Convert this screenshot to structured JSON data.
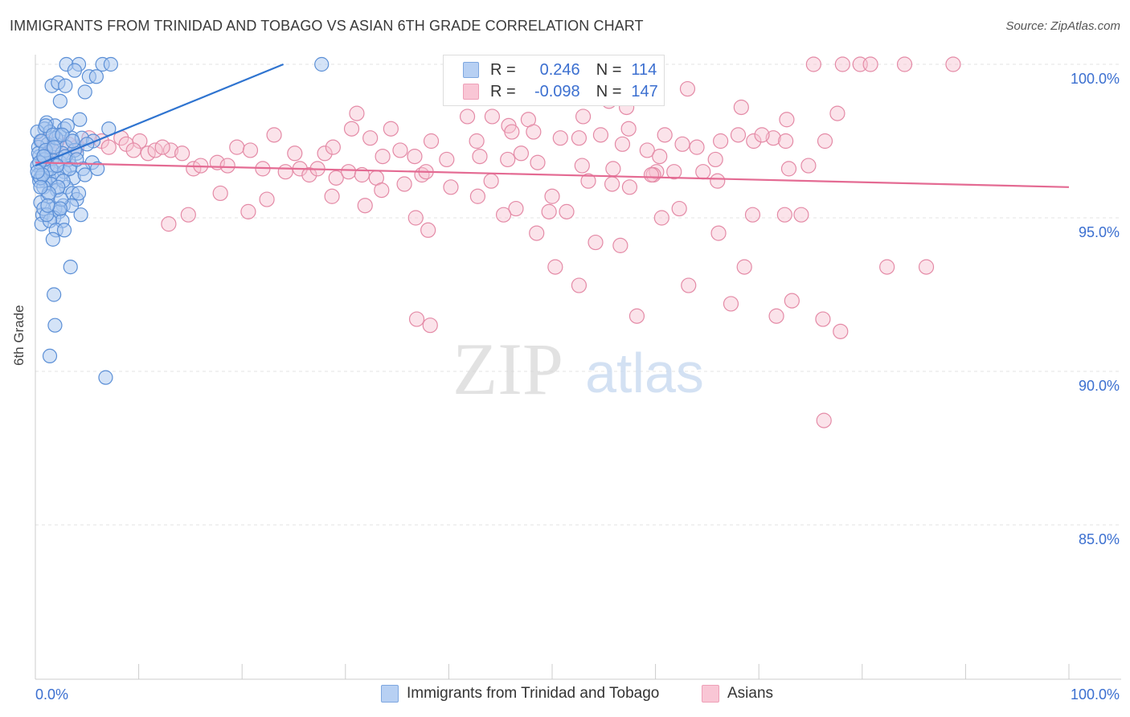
{
  "title": "IMMIGRANTS FROM TRINIDAD AND TOBAGO VS ASIAN 6TH GRADE CORRELATION CHART",
  "source": "Source: ZipAtlas.com",
  "watermark": {
    "zip": "ZIP",
    "atlas": "atlas"
  },
  "legend_top": {
    "rows": [
      {
        "r_label": "R =",
        "r_value": "0.246",
        "n_label": "N =",
        "n_value": "114"
      },
      {
        "r_label": "R =",
        "r_value": "-0.098",
        "n_label": "N =",
        "n_value": "147"
      }
    ]
  },
  "legend_bottom": {
    "items": [
      {
        "label": "Immigrants from Trinidad and Tobago"
      },
      {
        "label": "Asians"
      }
    ]
  },
  "colors": {
    "blue_fill": "#a9c8ef",
    "blue_stroke": "#5b8fd6",
    "blue_line": "#2f74d0",
    "pink_fill": "#f7c0d0",
    "pink_stroke": "#e48aa6",
    "pink_line": "#e46b93",
    "axis_label": "#3b6fd0",
    "grid": "#e3e3e3"
  },
  "chart_data": {
    "type": "scatter",
    "title": "IMMIGRANTS FROM TRINIDAD AND TOBAGO VS ASIAN 6TH GRADE CORRELATION CHART",
    "xlabel": "",
    "ylabel": "6th Grade",
    "xlim": [
      0,
      100
    ],
    "ylim": [
      80.5,
      101
    ],
    "x_tick_labels": [
      "0.0%",
      "100.0%"
    ],
    "y_ticks": [
      100,
      95,
      90,
      85
    ],
    "y_tick_labels": [
      "100.0%",
      "95.0%",
      "90.0%",
      "85.0%"
    ],
    "grid": true,
    "legend_position": "top-center",
    "series": [
      {
        "name": "Immigrants from Trinidad and Tobago",
        "r": 0.246,
        "n": 114,
        "trend": {
          "x": [
            0,
            24
          ],
          "y": [
            96.7,
            100
          ]
        },
        "points": [
          [
            3.0,
            100
          ],
          [
            4.2,
            100
          ],
          [
            6.5,
            100
          ],
          [
            27.7,
            100
          ],
          [
            3.8,
            99.8
          ],
          [
            5.2,
            99.6
          ],
          [
            1.6,
            99.3
          ],
          [
            2.2,
            99.4
          ],
          [
            2.9,
            99.3
          ],
          [
            4.8,
            99.1
          ],
          [
            2.4,
            98.8
          ],
          [
            4.3,
            98.2
          ],
          [
            1.1,
            98.1
          ],
          [
            0.9,
            97.9
          ],
          [
            1.9,
            98.0
          ],
          [
            2.8,
            97.9
          ],
          [
            7.1,
            97.9
          ],
          [
            1.4,
            97.8
          ],
          [
            2.3,
            97.7
          ],
          [
            3.5,
            97.6
          ],
          [
            4.5,
            97.6
          ],
          [
            5.6,
            97.5
          ],
          [
            0.5,
            97.5
          ],
          [
            1.2,
            97.4
          ],
          [
            2.0,
            97.4
          ],
          [
            3.0,
            97.3
          ],
          [
            0.3,
            97.3
          ],
          [
            1.7,
            97.2
          ],
          [
            2.6,
            97.1
          ],
          [
            4.0,
            97.1
          ],
          [
            0.4,
            97.0
          ],
          [
            1.0,
            97.0
          ],
          [
            1.6,
            96.9
          ],
          [
            0.7,
            96.9
          ],
          [
            2.4,
            96.8
          ],
          [
            5.5,
            96.8
          ],
          [
            0.2,
            96.7
          ],
          [
            1.2,
            96.7
          ],
          [
            3.4,
            96.7
          ],
          [
            4.6,
            96.6
          ],
          [
            0.6,
            96.6
          ],
          [
            1.8,
            96.5
          ],
          [
            2.8,
            96.5
          ],
          [
            0.3,
            96.4
          ],
          [
            1.3,
            96.3
          ],
          [
            3.7,
            96.3
          ],
          [
            2.2,
            96.3
          ],
          [
            0.9,
            96.2
          ],
          [
            0.4,
            96.2
          ],
          [
            1.5,
            96.1
          ],
          [
            3.0,
            96.0
          ],
          [
            0.8,
            96.0
          ],
          [
            2.1,
            95.9
          ],
          [
            3.6,
            95.8
          ],
          [
            1.2,
            95.7
          ],
          [
            4.0,
            95.6
          ],
          [
            0.5,
            95.5
          ],
          [
            2.7,
            95.4
          ],
          [
            3.5,
            95.4
          ],
          [
            1.9,
            95.3
          ],
          [
            2.3,
            95.2
          ],
          [
            4.4,
            95.1
          ],
          [
            0.7,
            95.1
          ],
          [
            1.8,
            95.0
          ],
          [
            2.6,
            94.9
          ],
          [
            0.6,
            94.8
          ],
          [
            1.4,
            94.9
          ],
          [
            2.0,
            94.6
          ],
          [
            2.8,
            94.6
          ],
          [
            1.7,
            94.3
          ],
          [
            3.4,
            93.4
          ],
          [
            1.8,
            92.5
          ],
          [
            1.9,
            91.5
          ],
          [
            1.4,
            90.5
          ],
          [
            6.8,
            89.8
          ],
          [
            0.2,
            97.8
          ],
          [
            0.5,
            96.3
          ],
          [
            0.8,
            95.3
          ],
          [
            2.5,
            95.6
          ],
          [
            1.1,
            95.1
          ],
          [
            3.2,
            96.9
          ],
          [
            4.8,
            96.4
          ],
          [
            0.3,
            97.1
          ],
          [
            1.0,
            98.0
          ],
          [
            2.0,
            97.6
          ],
          [
            2.7,
            96.2
          ],
          [
            3.8,
            97.2
          ],
          [
            0.6,
            97.5
          ],
          [
            1.5,
            96.6
          ],
          [
            2.2,
            96.0
          ],
          [
            0.9,
            96.9
          ],
          [
            1.7,
            97.7
          ],
          [
            3.1,
            98.0
          ],
          [
            5.0,
            97.4
          ],
          [
            0.4,
            96.8
          ],
          [
            1.3,
            95.8
          ],
          [
            2.9,
            97.0
          ],
          [
            4.2,
            95.8
          ],
          [
            0.7,
            96.4
          ],
          [
            2.4,
            95.3
          ],
          [
            1.0,
            97.2
          ],
          [
            3.3,
            96.6
          ],
          [
            0.5,
            96.0
          ],
          [
            1.8,
            97.3
          ],
          [
            2.6,
            97.7
          ],
          [
            4.0,
            96.9
          ],
          [
            0.2,
            96.5
          ],
          [
            1.2,
            95.4
          ],
          [
            3.6,
            97.5
          ],
          [
            0.8,
            97.0
          ],
          [
            2.1,
            96.7
          ],
          [
            5.9,
            99.6
          ],
          [
            7.3,
            100
          ],
          [
            6.0,
            96.6
          ]
        ]
      },
      {
        "name": "Asians",
        "r": -0.098,
        "n": 147,
        "trend": {
          "x": [
            0,
            100
          ],
          "y": [
            96.8,
            96.0
          ]
        },
        "points": [
          [
            75.3,
            100
          ],
          [
            78.1,
            100
          ],
          [
            79.8,
            100
          ],
          [
            80.8,
            100
          ],
          [
            84.1,
            100
          ],
          [
            88.8,
            100
          ],
          [
            63.1,
            99.2
          ],
          [
            55.5,
            98.8
          ],
          [
            41.3,
            98.9
          ],
          [
            57.2,
            98.6
          ],
          [
            31.1,
            98.4
          ],
          [
            41.8,
            98.3
          ],
          [
            44.2,
            98.3
          ],
          [
            47.7,
            98.2
          ],
          [
            53.0,
            98.3
          ],
          [
            68.3,
            98.6
          ],
          [
            72.7,
            98.2
          ],
          [
            77.6,
            98.4
          ],
          [
            30.6,
            97.9
          ],
          [
            34.4,
            97.9
          ],
          [
            45.8,
            98.0
          ],
          [
            48.2,
            97.8
          ],
          [
            54.7,
            97.7
          ],
          [
            57.4,
            97.9
          ],
          [
            62.6,
            97.4
          ],
          [
            66.3,
            97.5
          ],
          [
            68.0,
            97.7
          ],
          [
            71.4,
            97.6
          ],
          [
            76.4,
            97.5
          ],
          [
            23.1,
            97.7
          ],
          [
            32.4,
            97.6
          ],
          [
            38.3,
            97.5
          ],
          [
            42.7,
            97.5
          ],
          [
            46.1,
            97.8
          ],
          [
            50.8,
            97.6
          ],
          [
            52.6,
            97.6
          ],
          [
            56.8,
            97.4
          ],
          [
            59.2,
            97.2
          ],
          [
            60.9,
            97.7
          ],
          [
            19.5,
            97.3
          ],
          [
            20.8,
            97.2
          ],
          [
            25.1,
            97.1
          ],
          [
            28.0,
            97.1
          ],
          [
            33.6,
            97.0
          ],
          [
            36.7,
            97.0
          ],
          [
            39.8,
            96.9
          ],
          [
            43.0,
            97.0
          ],
          [
            47.0,
            97.1
          ],
          [
            52.9,
            96.7
          ],
          [
            60.1,
            96.5
          ],
          [
            65.8,
            96.9
          ],
          [
            72.9,
            96.6
          ],
          [
            13.1,
            97.2
          ],
          [
            14.2,
            97.1
          ],
          [
            15.3,
            96.6
          ],
          [
            16.0,
            96.7
          ],
          [
            17.6,
            96.8
          ],
          [
            18.6,
            96.7
          ],
          [
            22.0,
            96.6
          ],
          [
            24.2,
            96.5
          ],
          [
            25.6,
            96.6
          ],
          [
            26.5,
            96.4
          ],
          [
            27.3,
            96.6
          ],
          [
            29.1,
            96.3
          ],
          [
            30.3,
            96.5
          ],
          [
            31.6,
            96.4
          ],
          [
            33.0,
            96.3
          ],
          [
            35.7,
            96.1
          ],
          [
            37.4,
            96.4
          ],
          [
            40.2,
            96.0
          ],
          [
            42.8,
            95.7
          ],
          [
            46.5,
            95.3
          ],
          [
            50.0,
            95.7
          ],
          [
            53.5,
            96.2
          ],
          [
            55.8,
            96.1
          ],
          [
            57.5,
            96.0
          ],
          [
            59.8,
            96.4
          ],
          [
            61.8,
            96.5
          ],
          [
            64.6,
            96.5
          ],
          [
            66.0,
            96.2
          ],
          [
            10.1,
            97.5
          ],
          [
            10.9,
            97.1
          ],
          [
            11.6,
            97.2
          ],
          [
            12.3,
            97.3
          ],
          [
            8.3,
            97.6
          ],
          [
            8.8,
            97.4
          ],
          [
            9.5,
            97.2
          ],
          [
            6.4,
            97.5
          ],
          [
            7.1,
            97.3
          ],
          [
            5.2,
            97.6
          ],
          [
            3.2,
            97.4
          ],
          [
            4.0,
            97.3
          ],
          [
            2.1,
            97.5
          ],
          [
            1.4,
            97.2
          ],
          [
            0.8,
            97.5
          ],
          [
            17.9,
            95.8
          ],
          [
            20.6,
            95.2
          ],
          [
            22.4,
            95.6
          ],
          [
            28.7,
            95.7
          ],
          [
            31.9,
            95.4
          ],
          [
            33.5,
            95.9
          ],
          [
            36.8,
            95.0
          ],
          [
            38.0,
            94.6
          ],
          [
            45.3,
            95.1
          ],
          [
            48.5,
            94.5
          ],
          [
            49.7,
            95.2
          ],
          [
            51.4,
            95.2
          ],
          [
            54.2,
            94.2
          ],
          [
            56.6,
            94.1
          ],
          [
            60.6,
            95.0
          ],
          [
            62.3,
            95.3
          ],
          [
            66.1,
            94.5
          ],
          [
            69.4,
            95.1
          ],
          [
            72.5,
            95.1
          ],
          [
            12.9,
            94.8
          ],
          [
            14.8,
            95.1
          ],
          [
            63.2,
            92.8
          ],
          [
            50.3,
            93.4
          ],
          [
            52.6,
            92.8
          ],
          [
            67.3,
            92.2
          ],
          [
            68.6,
            93.4
          ],
          [
            71.7,
            91.8
          ],
          [
            73.2,
            92.3
          ],
          [
            74.1,
            95.1
          ],
          [
            76.2,
            91.7
          ],
          [
            77.9,
            91.3
          ],
          [
            82.4,
            93.4
          ],
          [
            86.2,
            93.4
          ],
          [
            36.9,
            91.7
          ],
          [
            38.2,
            91.5
          ],
          [
            58.2,
            91.8
          ],
          [
            76.3,
            88.4
          ],
          [
            72.6,
            97.5
          ],
          [
            60.4,
            97.0
          ],
          [
            69.5,
            97.5
          ],
          [
            28.8,
            97.3
          ],
          [
            35.3,
            97.2
          ],
          [
            64.0,
            97.3
          ],
          [
            45.7,
            96.9
          ],
          [
            37.8,
            96.5
          ],
          [
            48.6,
            96.8
          ],
          [
            44.1,
            96.2
          ],
          [
            55.9,
            96.6
          ],
          [
            70.3,
            97.7
          ],
          [
            59.6,
            96.4
          ],
          [
            74.8,
            96.7
          ],
          [
            2.9,
            97.0
          ]
        ]
      }
    ]
  }
}
